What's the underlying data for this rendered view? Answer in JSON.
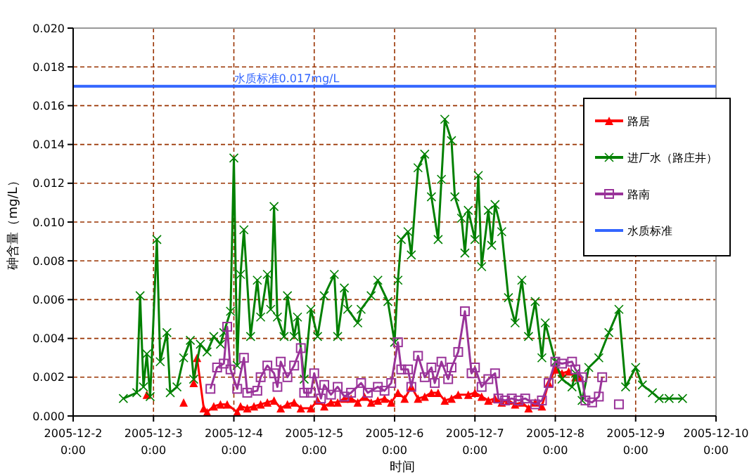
{
  "chart_data": {
    "type": "line",
    "xlabel": "时间",
    "ylabel": "砷含量（mg/L）",
    "xlim": [
      "2005-12-02",
      "2005-12-10"
    ],
    "xticks": [
      {
        "value": "2005-12-02",
        "label": "2005-12-2 0:00"
      },
      {
        "value": "2005-12-03",
        "label": "2005-12-3 0:00"
      },
      {
        "value": "2005-12-04",
        "label": "2005-12-4 0:00"
      },
      {
        "value": "2005-12-05",
        "label": "2005-12-5 0:00"
      },
      {
        "value": "2005-12-06",
        "label": "2005-12-6 0:00"
      },
      {
        "value": "2005-12-07",
        "label": "2005-12-7 0:00"
      },
      {
        "value": "2005-12-08",
        "label": "2005-12-8 0:00"
      },
      {
        "value": "2005-12-09",
        "label": "2005-12-9 0:00"
      },
      {
        "value": "2005-12-10",
        "label": "2005-12-10 0:00"
      }
    ],
    "ylim": [
      0,
      0.02
    ],
    "yticks": [
      {
        "value": 0,
        "label": "0.000"
      },
      {
        "value": 0.002,
        "label": "0.002"
      },
      {
        "value": 0.004,
        "label": "0.004"
      },
      {
        "value": 0.006,
        "label": "0.006"
      },
      {
        "value": 0.008,
        "label": "0.008"
      },
      {
        "value": 0.01,
        "label": "0.010"
      },
      {
        "value": 0.012,
        "label": "0.012"
      },
      {
        "value": 0.014,
        "label": "0.014"
      },
      {
        "value": 0.016,
        "label": "0.016"
      },
      {
        "value": 0.018,
        "label": "0.018"
      },
      {
        "value": 0.02,
        "label": "0.020"
      }
    ],
    "grid": true,
    "legend": "right",
    "line_style": "solid",
    "series": [
      {
        "name": "路居",
        "color": "#ff0000",
        "marker": "triangle",
        "x": [
          "2005-12-02T22:00",
          "2005-12-03T04:00",
          "2005-12-03T09:00",
          "2005-12-03T11:00",
          "2005-12-03T12:00",
          "2005-12-03T13:00",
          "2005-12-03T15:00",
          "2005-12-03T16:00",
          "2005-12-03T18:00",
          "2005-12-03T20:00",
          "2005-12-03T22:00",
          "2005-12-04T01:00",
          "2005-12-04T02:00",
          "2005-12-04T04:00",
          "2005-12-04T06:00",
          "2005-12-04T08:00",
          "2005-12-04T10:00",
          "2005-12-04T12:00",
          "2005-12-04T14:00",
          "2005-12-04T16:00",
          "2005-12-04T18:00",
          "2005-12-04T20:00",
          "2005-12-04T23:00",
          "2005-12-05T01:00",
          "2005-12-05T03:00",
          "2005-12-05T05:00",
          "2005-12-05T07:00",
          "2005-12-05T09:00",
          "2005-12-05T11:00",
          "2005-12-05T13:00",
          "2005-12-05T15:00",
          "2005-12-05T17:00",
          "2005-12-05T19:00",
          "2005-12-05T21:00",
          "2005-12-05T23:00",
          "2005-12-06T01:00",
          "2005-12-06T03:00",
          "2005-12-06T05:00",
          "2005-12-06T07:00",
          "2005-12-06T09:00",
          "2005-12-06T11:00",
          "2005-12-06T13:00",
          "2005-12-06T15:00",
          "2005-12-06T17:00",
          "2005-12-06T19:00",
          "2005-12-06T22:00",
          "2005-12-07T00:00",
          "2005-12-07T02:00",
          "2005-12-07T04:00",
          "2005-12-07T06:00",
          "2005-12-07T08:00",
          "2005-12-07T10:00",
          "2005-12-07T12:00",
          "2005-12-07T14:00",
          "2005-12-07T16:00",
          "2005-12-07T18:00",
          "2005-12-07T20:00",
          "2005-12-07T22:00",
          "2005-12-08T00:00",
          "2005-12-08T02:00",
          "2005-12-08T04:00",
          "2005-12-08T06:00",
          "2005-12-08T07:00"
        ],
        "values": [
          0.0011,
          null,
          0.0007,
          null,
          0.0017,
          0.003,
          0.0004,
          0.0002,
          0.0005,
          0.0006,
          0.0006,
          0.0002,
          0.0005,
          0.0004,
          0.0005,
          0.0006,
          0.0007,
          0.0008,
          0.0004,
          0.0006,
          0.0007,
          0.0004,
          0.0004,
          0.0008,
          0.0005,
          0.0007,
          0.0007,
          0.0009,
          0.0009,
          0.0007,
          0.001,
          0.0007,
          0.0008,
          0.0009,
          0.0007,
          0.0012,
          0.0009,
          0.0015,
          0.0009,
          0.001,
          0.0012,
          0.0012,
          0.0008,
          0.0009,
          0.0011,
          0.0011,
          0.0012,
          0.001,
          0.0008,
          0.0009,
          0.0007,
          0.0008,
          0.0006,
          0.0007,
          0.0004,
          0.0007,
          0.0005,
          0.0017,
          0.0024,
          0.0022,
          0.0023,
          0.002,
          0.002
        ]
      },
      {
        "name": "进厂水（路庄井）",
        "color": "#008000",
        "marker": "cross",
        "x": [
          "2005-12-02T15:00",
          "2005-12-02T19:00",
          "2005-12-02T20:00",
          "2005-12-02T21:00",
          "2005-12-02T22:00",
          "2005-12-02T23:00",
          "2005-12-03T01:00",
          "2005-12-03T02:00",
          "2005-12-03T04:00",
          "2005-12-03T05:00",
          "2005-12-03T07:00",
          "2005-12-03T09:00",
          "2005-12-03T11:00",
          "2005-12-03T12:00",
          "2005-12-03T14:00",
          "2005-12-03T16:00",
          "2005-12-03T18:00",
          "2005-12-03T20:00",
          "2005-12-03T21:00",
          "2005-12-03T23:00",
          "2005-12-04T00:00",
          "2005-12-04T01:00",
          "2005-12-04T02:00",
          "2005-12-04T03:00",
          "2005-12-04T05:00",
          "2005-12-04T07:00",
          "2005-12-04T08:00",
          "2005-12-04T10:00",
          "2005-12-04T11:00",
          "2005-12-04T12:00",
          "2005-12-04T13:00",
          "2005-12-04T15:00",
          "2005-12-04T16:00",
          "2005-12-04T18:00",
          "2005-12-04T19:00",
          "2005-12-04T21:00",
          "2005-12-04T23:00",
          "2005-12-05T01:00",
          "2005-12-05T03:00",
          "2005-12-05T06:00",
          "2005-12-05T07:00",
          "2005-12-05T09:00",
          "2005-12-05T10:00",
          "2005-12-05T13:00",
          "2005-12-05T14:00",
          "2005-12-05T17:00",
          "2005-12-05T19:00",
          "2005-12-05T22:00",
          "2005-12-06T00:00",
          "2005-12-06T01:00",
          "2005-12-06T02:00",
          "2005-12-06T04:00",
          "2005-12-06T05:00",
          "2005-12-06T07:00",
          "2005-12-06T09:00",
          "2005-12-06T11:00",
          "2005-12-06T13:00",
          "2005-12-06T14:00",
          "2005-12-06T15:00",
          "2005-12-06T17:00",
          "2005-12-06T18:00",
          "2005-12-06T20:00",
          "2005-12-06T21:00",
          "2005-12-06T22:00",
          "2005-12-07T00:00",
          "2005-12-07T01:00",
          "2005-12-07T02:00",
          "2005-12-07T04:00",
          "2005-12-07T05:00",
          "2005-12-07T06:00",
          "2005-12-07T08:00",
          "2005-12-07T10:00",
          "2005-12-07T12:00",
          "2005-12-07T14:00",
          "2005-12-07T16:00",
          "2005-12-07T18:00",
          "2005-12-07T20:00",
          "2005-12-07T21:00",
          "2005-12-08T00:00",
          "2005-12-08T02:00",
          "2005-12-08T05:00",
          "2005-12-08T06:00",
          "2005-12-08T08:00",
          "2005-12-08T10:00",
          "2005-12-08T13:00",
          "2005-12-08T16:00",
          "2005-12-08T19:00",
          "2005-12-08T21:00",
          "2005-12-09T00:00",
          "2005-12-09T02:00",
          "2005-12-09T05:00",
          "2005-12-09T07:00",
          "2005-12-09T10:00",
          "2005-12-09T14:00"
        ],
        "values": [
          0.0009,
          0.0012,
          0.0062,
          0.0015,
          0.0032,
          0.001,
          0.0091,
          0.0028,
          0.0043,
          0.0012,
          0.0015,
          0.003,
          0.0039,
          0.0019,
          0.0037,
          0.0033,
          0.0041,
          0.0037,
          0.0043,
          0.0054,
          0.0133,
          0.0026,
          0.0073,
          0.0096,
          0.0041,
          0.007,
          0.0051,
          0.0073,
          0.0055,
          0.0108,
          0.0051,
          0.0041,
          0.0062,
          0.0041,
          0.0051,
          0.0019,
          0.0055,
          0.0041,
          0.0062,
          0.0073,
          0.0041,
          0.0066,
          0.0055,
          0.0048,
          0.0055,
          0.0062,
          0.007,
          0.0059,
          0.0038,
          0.007,
          0.0091,
          0.0095,
          0.0083,
          0.0128,
          0.0135,
          0.0113,
          0.0091,
          0.0122,
          0.0153,
          0.0142,
          0.0113,
          0.0102,
          0.0084,
          0.0106,
          0.0091,
          0.0124,
          0.0077,
          0.0106,
          0.0088,
          0.0109,
          0.0095,
          0.0061,
          0.0048,
          0.007,
          0.0041,
          0.0059,
          0.003,
          0.0048,
          0.0028,
          0.0019,
          0.0015,
          0.0022,
          0.0008,
          0.0025,
          0.003,
          0.0043,
          0.0055,
          0.0015,
          0.0025,
          0.0016,
          0.0012,
          0.0009,
          0.0009,
          0.0009
        ]
      },
      {
        "name": "路南",
        "color": "#993399",
        "marker": "square",
        "x": [
          "2005-12-03T17:00",
          "2005-12-03T19:00",
          "2005-12-03T21:00",
          "2005-12-03T22:00",
          "2005-12-03T23:00",
          "2005-12-04T01:00",
          "2005-12-04T03:00",
          "2005-12-04T04:00",
          "2005-12-04T07:00",
          "2005-12-04T08:00",
          "2005-12-04T10:00",
          "2005-12-04T12:00",
          "2005-12-04T13:00",
          "2005-12-04T14:00",
          "2005-12-04T16:00",
          "2005-12-04T18:00",
          "2005-12-04T20:00",
          "2005-12-04T21:00",
          "2005-12-04T23:00",
          "2005-12-05T00:00",
          "2005-12-05T02:00",
          "2005-12-05T03:00",
          "2005-12-05T05:00",
          "2005-12-05T07:00",
          "2005-12-05T09:00",
          "2005-12-05T11:00",
          "2005-12-05T14:00",
          "2005-12-05T16:00",
          "2005-12-05T19:00",
          "2005-12-05T21:00",
          "2005-12-05T23:00",
          "2005-12-06T01:00",
          "2005-12-06T02:00",
          "2005-12-06T04:00",
          "2005-12-06T05:00",
          "2005-12-06T07:00",
          "2005-12-06T09:00",
          "2005-12-06T11:00",
          "2005-12-06T12:00",
          "2005-12-06T14:00",
          "2005-12-06T16:00",
          "2005-12-06T17:00",
          "2005-12-06T19:00",
          "2005-12-06T21:00",
          "2005-12-06T23:00",
          "2005-12-07T00:00",
          "2005-12-07T02:00",
          "2005-12-07T04:00",
          "2005-12-07T06:00",
          "2005-12-07T07:00",
          "2005-12-07T09:00",
          "2005-12-07T11:00",
          "2005-12-07T13:00",
          "2005-12-07T15:00",
          "2005-12-07T18:00",
          "2005-12-07T20:00",
          "2005-12-07T22:00",
          "2005-12-08T00:00",
          "2005-12-08T02:00",
          "2005-12-08T05:00",
          "2005-12-08T06:00",
          "2005-12-08T08:00",
          "2005-12-08T09:00",
          "2005-12-08T11:00",
          "2005-12-08T13:00",
          "2005-12-08T14:00",
          "2005-12-08T17:00",
          "2005-12-08T19:00"
        ],
        "values": [
          0.0014,
          0.0025,
          0.0027,
          0.0046,
          0.0024,
          0.0014,
          0.003,
          0.0012,
          0.0013,
          0.002,
          0.0026,
          0.0022,
          0.0015,
          0.0028,
          0.002,
          0.0026,
          0.0035,
          0.0012,
          0.0012,
          0.0022,
          0.0009,
          0.0016,
          0.0011,
          0.0015,
          0.001,
          0.0012,
          0.0017,
          0.0012,
          0.0015,
          0.0013,
          0.0017,
          0.0038,
          0.0024,
          0.0024,
          0.0015,
          0.0031,
          0.002,
          0.0025,
          0.0017,
          0.0028,
          0.0019,
          0.0025,
          0.0033,
          0.0054,
          0.0022,
          0.0025,
          0.0015,
          0.0019,
          0.0022,
          0.0009,
          0.0008,
          0.0009,
          0.0008,
          0.0009,
          0.0006,
          0.0008,
          0.0017,
          0.0028,
          0.0027,
          0.0028,
          0.0024,
          0.002,
          0.0008,
          0.0007,
          0.001,
          0.002,
          null,
          0.0006
        ]
      }
    ],
    "ref_lines": [
      {
        "axis": "y",
        "value": 0.017,
        "label": "水质标准",
        "color": "#3366ff",
        "line_style": "solid"
      }
    ],
    "annotations": [
      {
        "text": "水质标准0.017mg/L",
        "x": "2005-12-04T00:00",
        "y": 0.017
      }
    ]
  }
}
